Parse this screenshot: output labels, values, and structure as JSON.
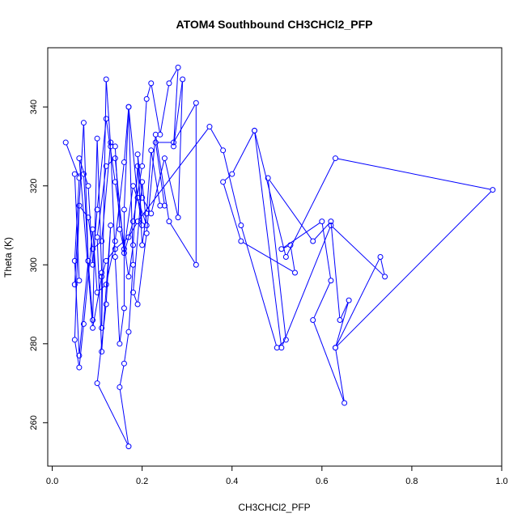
{
  "chart_data": {
    "type": "line",
    "title": "ATOM4 Southbound CH3CHCl2_PFP",
    "xlabel": "CH3CHCl2_PFP",
    "ylabel": "Theta (K)",
    "xlim": [
      -0.01,
      1.0
    ],
    "ylim": [
      249,
      355
    ],
    "x_ticks": [
      "0.0",
      "0.2",
      "0.4",
      "0.6",
      "0.8",
      "1.0"
    ],
    "y_ticks": [
      "260",
      "280",
      "300",
      "320",
      "340"
    ],
    "marker": "open-circle",
    "line_color": "#0000ff",
    "points": [
      [
        0.03,
        331
      ],
      [
        0.06,
        322
      ],
      [
        0.05,
        301
      ],
      [
        0.06,
        277
      ],
      [
        0.08,
        301
      ],
      [
        0.07,
        323
      ],
      [
        0.05,
        323
      ],
      [
        0.06,
        296
      ],
      [
        0.05,
        295
      ],
      [
        0.07,
        336
      ],
      [
        0.08,
        301
      ],
      [
        0.09,
        286
      ],
      [
        0.1,
        332
      ],
      [
        0.11,
        298
      ],
      [
        0.11,
        284
      ],
      [
        0.12,
        347
      ],
      [
        0.13,
        330
      ],
      [
        0.14,
        302
      ],
      [
        0.15,
        280
      ],
      [
        0.16,
        289
      ],
      [
        0.16,
        314
      ],
      [
        0.17,
        340
      ],
      [
        0.18,
        300
      ],
      [
        0.17,
        283
      ],
      [
        0.16,
        275
      ],
      [
        0.15,
        269
      ],
      [
        0.17,
        254
      ],
      [
        0.1,
        270
      ],
      [
        0.12,
        290
      ],
      [
        0.13,
        310
      ],
      [
        0.11,
        278
      ],
      [
        0.1,
        307
      ],
      [
        0.12,
        325
      ],
      [
        0.14,
        327
      ],
      [
        0.16,
        303
      ],
      [
        0.18,
        311
      ],
      [
        0.2,
        325
      ],
      [
        0.21,
        342
      ],
      [
        0.22,
        346
      ],
      [
        0.24,
        333
      ],
      [
        0.26,
        346
      ],
      [
        0.28,
        350
      ],
      [
        0.27,
        330
      ],
      [
        0.29,
        347
      ],
      [
        0.28,
        312
      ],
      [
        0.25,
        327
      ],
      [
        0.22,
        313
      ],
      [
        0.2,
        317
      ],
      [
        0.19,
        328
      ],
      [
        0.2,
        305
      ],
      [
        0.21,
        313
      ],
      [
        0.22,
        329
      ],
      [
        0.24,
        315
      ],
      [
        0.25,
        315
      ],
      [
        0.23,
        331
      ],
      [
        0.27,
        331
      ],
      [
        0.32,
        341
      ],
      [
        0.32,
        300
      ],
      [
        0.26,
        311
      ],
      [
        0.23,
        333
      ],
      [
        0.21,
        308
      ],
      [
        0.19,
        290
      ],
      [
        0.18,
        293
      ],
      [
        0.2,
        321
      ],
      [
        0.21,
        310
      ],
      [
        0.18,
        320
      ],
      [
        0.16,
        304
      ],
      [
        0.15,
        309
      ],
      [
        0.14,
        330
      ],
      [
        0.13,
        331
      ],
      [
        0.11,
        306
      ],
      [
        0.09,
        304
      ],
      [
        0.08,
        312
      ],
      [
        0.06,
        315
      ],
      [
        0.05,
        281
      ],
      [
        0.06,
        274
      ],
      [
        0.07,
        285
      ],
      [
        0.09,
        309
      ],
      [
        0.1,
        293
      ],
      [
        0.12,
        295
      ],
      [
        0.14,
        306
      ],
      [
        0.16,
        326
      ],
      [
        0.17,
        340
      ],
      [
        0.19,
        317
      ],
      [
        0.2,
        310
      ],
      [
        0.19,
        325
      ],
      [
        0.18,
        305
      ],
      [
        0.17,
        297
      ],
      [
        0.14,
        321
      ],
      [
        0.12,
        337
      ],
      [
        0.1,
        314
      ],
      [
        0.09,
        300
      ],
      [
        0.08,
        320
      ],
      [
        0.06,
        327
      ],
      [
        0.09,
        284
      ],
      [
        0.11,
        297
      ],
      [
        0.12,
        301
      ],
      [
        0.14,
        304
      ],
      [
        0.17,
        307
      ],
      [
        0.19,
        311
      ],
      [
        0.35,
        335
      ],
      [
        0.38,
        329
      ],
      [
        0.42,
        310
      ],
      [
        0.5,
        279
      ],
      [
        0.52,
        281
      ],
      [
        0.48,
        322
      ],
      [
        0.58,
        306
      ],
      [
        0.62,
        311
      ],
      [
        0.64,
        286
      ],
      [
        0.66,
        291
      ],
      [
        0.63,
        279
      ],
      [
        0.65,
        265
      ],
      [
        0.58,
        286
      ],
      [
        0.62,
        296
      ],
      [
        0.6,
        311
      ],
      [
        0.51,
        304
      ],
      [
        0.53,
        305
      ],
      [
        0.54,
        298
      ],
      [
        0.42,
        306
      ],
      [
        0.38,
        321
      ],
      [
        0.4,
        323
      ],
      [
        0.45,
        334
      ],
      [
        0.52,
        302
      ],
      [
        0.63,
        327
      ],
      [
        0.98,
        319
      ],
      [
        0.63,
        279
      ],
      [
        0.73,
        302
      ],
      [
        0.74,
        297
      ],
      [
        0.62,
        310
      ],
      [
        0.51,
        279
      ],
      [
        0.45,
        334
      ]
    ]
  }
}
